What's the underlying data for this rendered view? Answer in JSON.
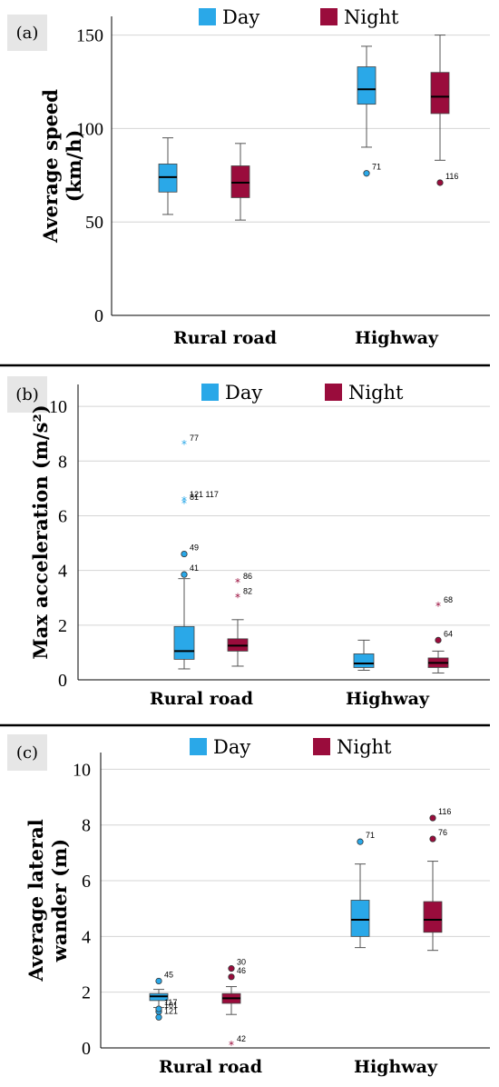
{
  "colors": {
    "day": "#2aa8e8",
    "night": "#9a0c3c"
  },
  "legend": {
    "day": "Day",
    "night": "Night"
  },
  "chart_data": [
    {
      "type": "boxplot",
      "panel_label": "(a)",
      "ylabel_line1": "Average speed",
      "ylabel_line2": "(km/h)",
      "ylim": [
        0,
        160
      ],
      "yticks": [
        0,
        50,
        100,
        150
      ],
      "categories": [
        "Rural road",
        "Highway"
      ],
      "series": [
        {
          "name": "Day",
          "boxes": [
            {
              "min": 54,
              "q1": 66,
              "median": 74,
              "q3": 81,
              "max": 95,
              "outliers": []
            },
            {
              "min": 90,
              "q1": 113,
              "median": 121,
              "q3": 133,
              "max": 144,
              "outliers": [
                {
                  "value": 76,
                  "label": "71",
                  "marker": "circle"
                }
              ]
            }
          ]
        },
        {
          "name": "Night",
          "boxes": [
            {
              "min": 51,
              "q1": 63,
              "median": 71,
              "q3": 80,
              "max": 92,
              "outliers": []
            },
            {
              "min": 83,
              "q1": 108,
              "median": 117,
              "q3": 130,
              "max": 150,
              "outliers": [
                {
                  "value": 71,
                  "label": "116",
                  "marker": "circle"
                }
              ]
            }
          ]
        }
      ]
    },
    {
      "type": "boxplot",
      "panel_label": "(b)",
      "ylabel_line1": "Max acceleration (m/s²)",
      "ylabel_line2": "",
      "ylim": [
        0,
        10.8
      ],
      "yticks": [
        0,
        2,
        4,
        6,
        8,
        10
      ],
      "categories": [
        "Rural road",
        "Highway"
      ],
      "series": [
        {
          "name": "Day",
          "boxes": [
            {
              "min": 0.4,
              "q1": 0.75,
              "median": 1.05,
              "q3": 1.95,
              "max": 3.7,
              "outliers": [
                {
                  "value": 8.6,
                  "label": "77",
                  "marker": "star"
                },
                {
                  "value": 6.55,
                  "label": "121 117",
                  "marker": "star"
                },
                {
                  "value": 6.45,
                  "label": "81",
                  "marker": "star"
                },
                {
                  "value": 4.6,
                  "label": "49",
                  "marker": "circle"
                },
                {
                  "value": 3.85,
                  "label": "41",
                  "marker": "circle"
                }
              ]
            },
            {
              "min": 0.35,
              "q1": 0.45,
              "median": 0.6,
              "q3": 0.95,
              "max": 1.45,
              "outliers": []
            }
          ]
        },
        {
          "name": "Night",
          "boxes": [
            {
              "min": 0.5,
              "q1": 1.05,
              "median": 1.25,
              "q3": 1.5,
              "max": 2.2,
              "outliers": [
                {
                  "value": 3.55,
                  "label": "86",
                  "marker": "star"
                },
                {
                  "value": 3.0,
                  "label": "82",
                  "marker": "star"
                }
              ]
            },
            {
              "min": 0.25,
              "q1": 0.45,
              "median": 0.62,
              "q3": 0.8,
              "max": 1.05,
              "outliers": [
                {
                  "value": 2.7,
                  "label": "68",
                  "marker": "star"
                },
                {
                  "value": 1.45,
                  "label": "64",
                  "marker": "circle"
                }
              ]
            }
          ]
        }
      ]
    },
    {
      "type": "boxplot",
      "panel_label": "(c)",
      "ylabel_line1": "Average lateral",
      "ylabel_line2": "wander (m)",
      "ylim": [
        0,
        10.6
      ],
      "yticks": [
        0,
        2,
        4,
        6,
        8,
        10
      ],
      "categories": [
        "Rural road",
        "Highway"
      ],
      "series": [
        {
          "name": "Day",
          "boxes": [
            {
              "min": 1.45,
              "q1": 1.7,
              "median": 1.85,
              "q3": 1.95,
              "max": 2.1,
              "outliers": [
                {
                  "value": 2.4,
                  "label": "45",
                  "marker": "circle"
                },
                {
                  "value": 1.3,
                  "label": "101",
                  "marker": "circle"
                },
                {
                  "value": 1.4,
                  "label": "117",
                  "marker": "circle"
                },
                {
                  "value": 1.1,
                  "label": "121",
                  "marker": "circle"
                }
              ]
            },
            {
              "min": 3.6,
              "q1": 4.0,
              "median": 4.6,
              "q3": 5.3,
              "max": 6.6,
              "outliers": [
                {
                  "value": 7.4,
                  "label": "71",
                  "marker": "circle"
                }
              ]
            }
          ]
        },
        {
          "name": "Night",
          "boxes": [
            {
              "min": 1.2,
              "q1": 1.6,
              "median": 1.78,
              "q3": 1.95,
              "max": 2.2,
              "outliers": [
                {
                  "value": 2.85,
                  "label": "30",
                  "marker": "circle"
                },
                {
                  "value": 2.55,
                  "label": "46",
                  "marker": "circle"
                },
                {
                  "value": 0.1,
                  "label": "42",
                  "marker": "star"
                }
              ]
            },
            {
              "min": 3.5,
              "q1": 4.15,
              "median": 4.6,
              "q3": 5.25,
              "max": 6.7,
              "outliers": [
                {
                  "value": 8.25,
                  "label": "116",
                  "marker": "circle"
                },
                {
                  "value": 7.5,
                  "label": "76",
                  "marker": "circle"
                }
              ]
            }
          ]
        }
      ]
    }
  ]
}
